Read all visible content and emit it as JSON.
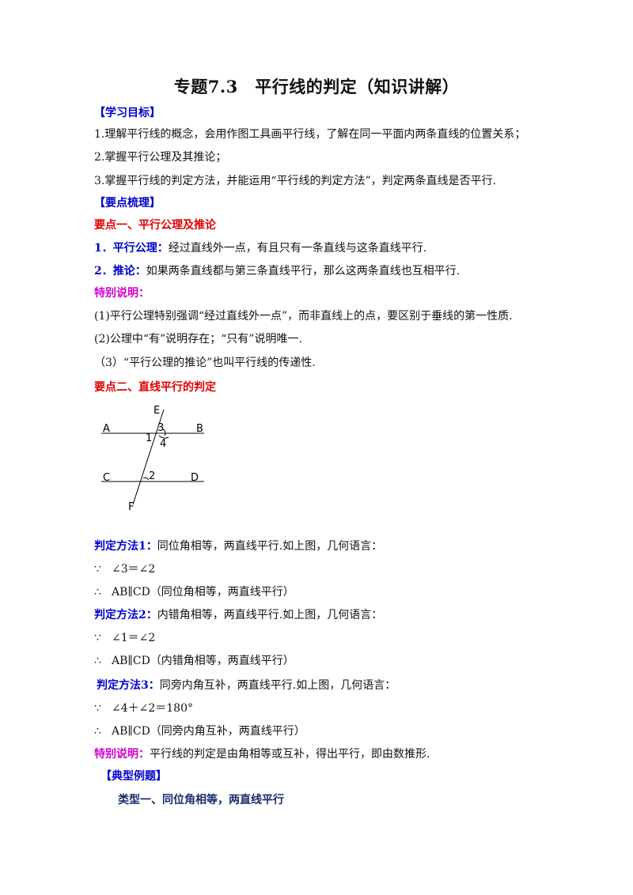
{
  "title": "专题7.3　平行线的判定（知识讲解）",
  "section_goals": {
    "heading": "【学习目标】",
    "items": [
      "1.理解平行线的概念，会用作图工具画平行线，了解在同一平面内两条直线的位置关系；",
      "2.掌握平行公理及其推论；",
      "3.掌握平行线的判定方法，并能运用“平行线的判定方法”，判定两条直线是否平行."
    ]
  },
  "section_points": {
    "heading": "【要点梳理】",
    "point1": {
      "heading": "要点一、平行公理及推论",
      "item1_label": "1．平行公理：",
      "item1_text": "经过直线外一点，有且只有一条直线与这条直线平行.",
      "item2_label": "2．推论：",
      "item2_text": "如果两条直线都与第三条直线平行，那么这两条直线也互相平行.",
      "note_heading": "特别说明：",
      "notes": [
        "(1)平行公理特别强调“经过直线外一点”，而非直线上的点，要区别于垂线的第一性质.",
        "(2)公理中“有”说明存在；“只有”说明唯一.",
        "（3）“平行公理的推论”也叫平行线的传递性."
      ]
    },
    "point2": {
      "heading": "要点二、直线平行的判定",
      "diagram_labels": {
        "E": "E",
        "A": "A",
        "B": "B",
        "C": "C",
        "D": "D",
        "F": "F",
        "a1": "1",
        "a2": "2",
        "a3": "3",
        "a4": "4"
      },
      "method1_label": "判定方法1：",
      "method1_text": "同位角相等，两直线平行.如上图，几何语言：",
      "method1_because_sym": "∵",
      "method1_because": "∠3＝∠2",
      "method1_therefore_sym": "∴",
      "method1_therefore": "AB∥CD（同位角相等，两直线平行）",
      "method2_label": "判定方法2：",
      "method2_text": "内错角相等，两直线平行.如上图，几何语言：",
      "method2_because_sym": "∵",
      "method2_because": "∠1＝∠2",
      "method2_therefore_sym": "∴",
      "method2_therefore": "AB∥CD（内错角相等，两直线平行）",
      "method3_label": "判定方法3：",
      "method3_text": "同旁内角互补，两直线平行.如上图，几何语言：",
      "method3_because_sym": "∵",
      "method3_because": "∠4＋∠2＝180°",
      "method3_therefore_sym": "∴",
      "method3_therefore": "AB∥CD（同旁内角互补，两直线平行）",
      "note_label": "特别说明：",
      "note_text": "平行线的判定是由角相等或互补，得出平行，即由数推形."
    }
  },
  "section_examples": {
    "heading": "【典型例题】",
    "type1": "类型一、同位角相等，两直线平行"
  }
}
